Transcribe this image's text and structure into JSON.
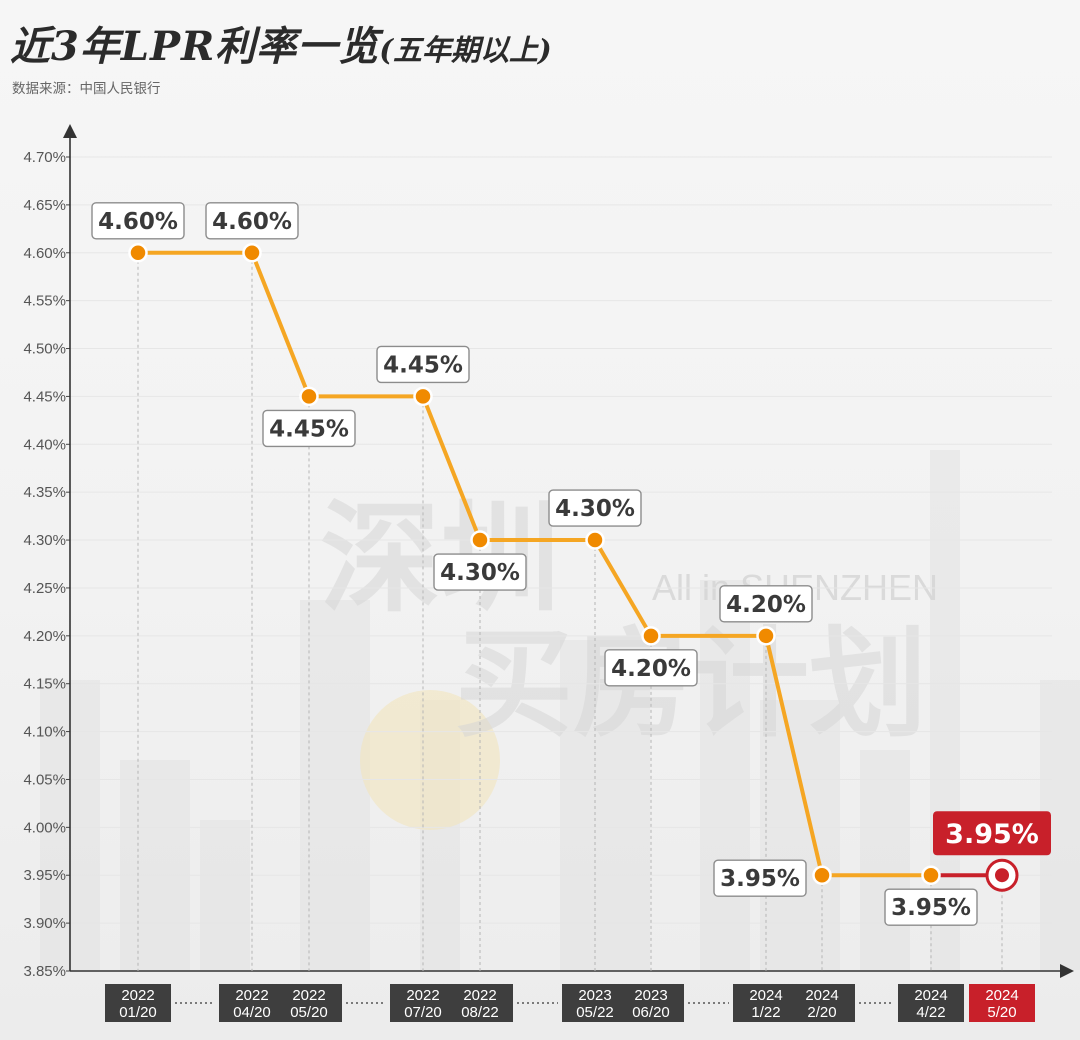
{
  "header": {
    "title": "近3年LPR利率一览",
    "title_sub": "(五年期以上)",
    "source": "数据来源：中国人民银行"
  },
  "watermark": {
    "main": "深圳",
    "line2": "买房计划",
    "english": "All in SHENZHEN"
  },
  "colors": {
    "line": "#f5a623",
    "dot": "#f08a00",
    "highlight": "#c8202a",
    "date_box": "#3e3e3e"
  },
  "chart_data": {
    "type": "line",
    "title": "近3年LPR利率一览(五年期以上)",
    "ylabel": "",
    "xlabel": "",
    "ylim": [
      3.85,
      4.7
    ],
    "y_ticks": [
      "3.85%",
      "3.90%",
      "3.95%",
      "4.00%",
      "4.05%",
      "4.10%",
      "4.15%",
      "4.20%",
      "4.25%",
      "4.30%",
      "4.35%",
      "4.40%",
      "4.45%",
      "4.50%",
      "4.55%",
      "4.60%",
      "4.65%",
      "4.70%"
    ],
    "grid": true,
    "legend": "none",
    "points": [
      {
        "year": "2022",
        "date": "01/20",
        "value": 4.6,
        "label": "4.60%",
        "label_pos": "above"
      },
      {
        "year": "2022",
        "date": "04/20",
        "value": 4.6,
        "label": "4.60%",
        "label_pos": "above"
      },
      {
        "year": "2022",
        "date": "05/20",
        "value": 4.45,
        "label": "4.45%",
        "label_pos": "below"
      },
      {
        "year": "2022",
        "date": "07/20",
        "value": 4.45,
        "label": "4.45%",
        "label_pos": "above"
      },
      {
        "year": "2022",
        "date": "08/22",
        "value": 4.3,
        "label": "4.30%",
        "label_pos": "below"
      },
      {
        "year": "2023",
        "date": "05/22",
        "value": 4.3,
        "label": "4.30%",
        "label_pos": "above"
      },
      {
        "year": "2023",
        "date": "06/20",
        "value": 4.2,
        "label": "4.20%",
        "label_pos": "below"
      },
      {
        "year": "2024",
        "date": "1/22",
        "value": 4.2,
        "label": "4.20%",
        "label_pos": "above"
      },
      {
        "year": "2024",
        "date": "2/20",
        "value": 3.95,
        "label": "3.95%",
        "label_pos": "left"
      },
      {
        "year": "2024",
        "date": "4/22",
        "value": 3.95,
        "label": "3.95%",
        "label_pos": "below"
      },
      {
        "year": "2024",
        "date": "5/20",
        "value": 3.95,
        "label": "3.95%",
        "label_pos": "above",
        "highlight": true
      }
    ]
  }
}
